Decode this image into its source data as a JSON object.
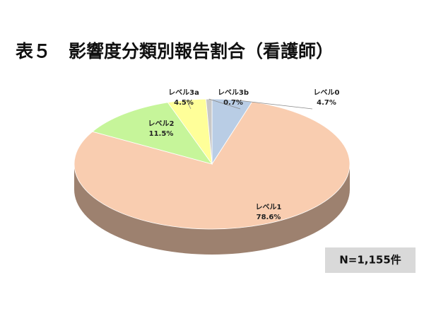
{
  "chart_data": {
    "type": "pie3d",
    "title": "表５　影響度分類別報告割合（看護師）",
    "categories": [
      "レベル0",
      "レベル1",
      "レベル2",
      "レベル3a",
      "レベル3b"
    ],
    "values": [
      4.7,
      78.6,
      11.5,
      4.5,
      0.7
    ],
    "value_labels": [
      "4.7%",
      "78.6%",
      "11.5%",
      "4.5%",
      "0.7%"
    ],
    "colors": [
      "#b9cde5",
      "#f9cdb0",
      "#c6f59a",
      "#ffff99",
      "#c8c8c8"
    ],
    "note": "N=1,155件"
  }
}
